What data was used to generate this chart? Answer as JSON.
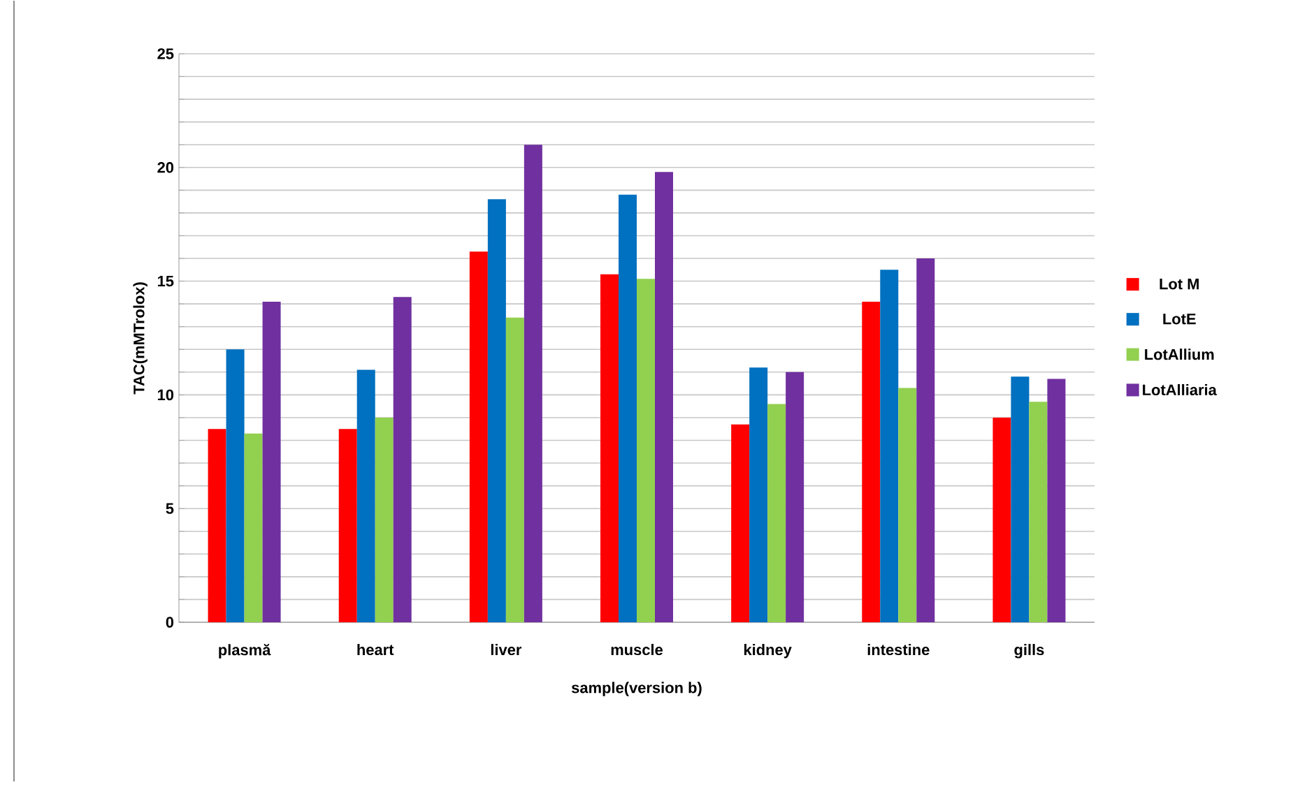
{
  "chart_data": {
    "type": "bar",
    "xlabel": "sample(version b)",
    "ylabel": "TAC(mMTrolox)",
    "categories": [
      "plasmă",
      "heart",
      "liver",
      "muscle",
      "kidney",
      "intestine",
      "gills"
    ],
    "series": [
      {
        "name": "Lot M",
        "color": "#ff0000",
        "values": [
          8.5,
          8.5,
          16.3,
          15.3,
          8.7,
          14.1,
          9.0
        ]
      },
      {
        "name": "LotE",
        "color": "#0070c0",
        "values": [
          12.0,
          11.1,
          18.6,
          18.8,
          11.2,
          15.5,
          10.8
        ]
      },
      {
        "name": "LotAllium",
        "color": "#92d050",
        "values": [
          8.3,
          9.0,
          13.4,
          15.1,
          9.6,
          10.3,
          9.7
        ]
      },
      {
        "name": "LotAlliaria",
        "color": "#7030a0",
        "values": [
          14.1,
          14.3,
          21.0,
          19.8,
          11.0,
          16.0,
          10.7
        ]
      }
    ],
    "ylim": [
      0,
      25
    ],
    "yticks": [
      0,
      {
        "value": 1,
        "label": null
      },
      {
        "value": 2,
        "label": null
      },
      {
        "value": 3,
        "label": null
      },
      {
        "value": 4,
        "label": null
      },
      5,
      {
        "value": 6,
        "label": null
      },
      {
        "value": 7,
        "label": null
      },
      {
        "value": 8,
        "label": null
      },
      {
        "value": 9,
        "label": null
      },
      10,
      {
        "value": 11,
        "label": null
      },
      {
        "value": 12,
        "label": null
      },
      {
        "value": 13,
        "label": null
      },
      {
        "value": 14,
        "label": null
      },
      15,
      {
        "value": 16,
        "label": null
      },
      {
        "value": 17,
        "label": null
      },
      {
        "value": 18,
        "label": null
      },
      {
        "value": 19,
        "label": null
      },
      20,
      {
        "value": 21,
        "label": null
      },
      {
        "value": 22,
        "label": null
      },
      {
        "value": 23,
        "label": null
      },
      {
        "value": 24,
        "label": null
      },
      25
    ],
    "grid": "y",
    "legend": "right"
  }
}
